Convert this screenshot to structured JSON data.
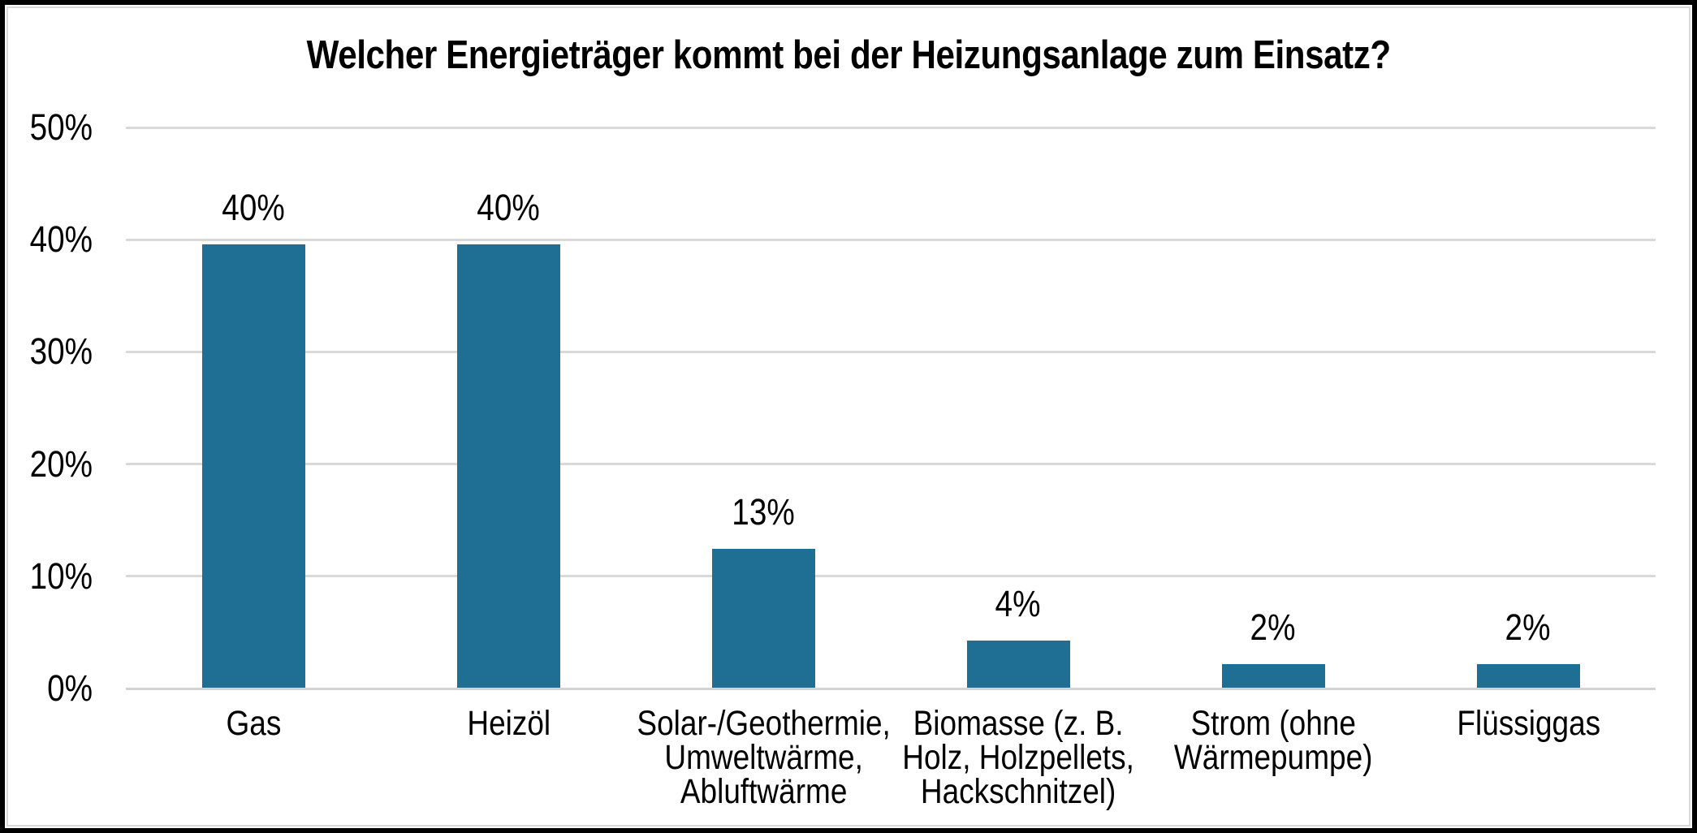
{
  "chart_data": {
    "type": "bar",
    "title": "Welcher Energieträger kommt bei der Heizungsanlage zum Einsatz?",
    "categories": [
      "Gas",
      "Heizöl",
      "Solar-/Geothermie, Umweltwärme, Abluftwärme",
      "Biomasse (z. B. Holz, Holzpellets, Hackschnitzel)",
      "Strom (ohne Wärmepumpe)",
      "Flüssiggas"
    ],
    "category_lines": [
      [
        "Gas"
      ],
      [
        "Heizöl"
      ],
      [
        "Solar-/Geothermie,",
        "Umweltwärme,",
        "Abluftwärme"
      ],
      [
        "Biomasse (z. B.",
        "Holz, Holzpellets,",
        "Hackschnitzel)"
      ],
      [
        "Strom (ohne",
        "Wärmepumpe)"
      ],
      [
        "Flüssiggas"
      ]
    ],
    "values": [
      40,
      40,
      13,
      4,
      2,
      2
    ],
    "data_labels": [
      "40%",
      "40%",
      "13%",
      "4%",
      "2%",
      "2%"
    ],
    "bar_render_pct": [
      39.5,
      39.5,
      12.4,
      4.2,
      2.1,
      2.1
    ],
    "y_ticks": [
      "0%",
      "10%",
      "20%",
      "30%",
      "40%",
      "50%"
    ],
    "ylim": [
      0,
      50
    ],
    "xlabel": "",
    "ylabel": "",
    "grid": true,
    "legend": "none",
    "colors": {
      "bar": "#1F6E94",
      "gridline": "#D9D9D9",
      "axis_line": "#D3D3D3",
      "text": "#000000",
      "background": "#FFFFFF",
      "frame": "#000000",
      "inner_border": "#D9D9D9"
    }
  }
}
